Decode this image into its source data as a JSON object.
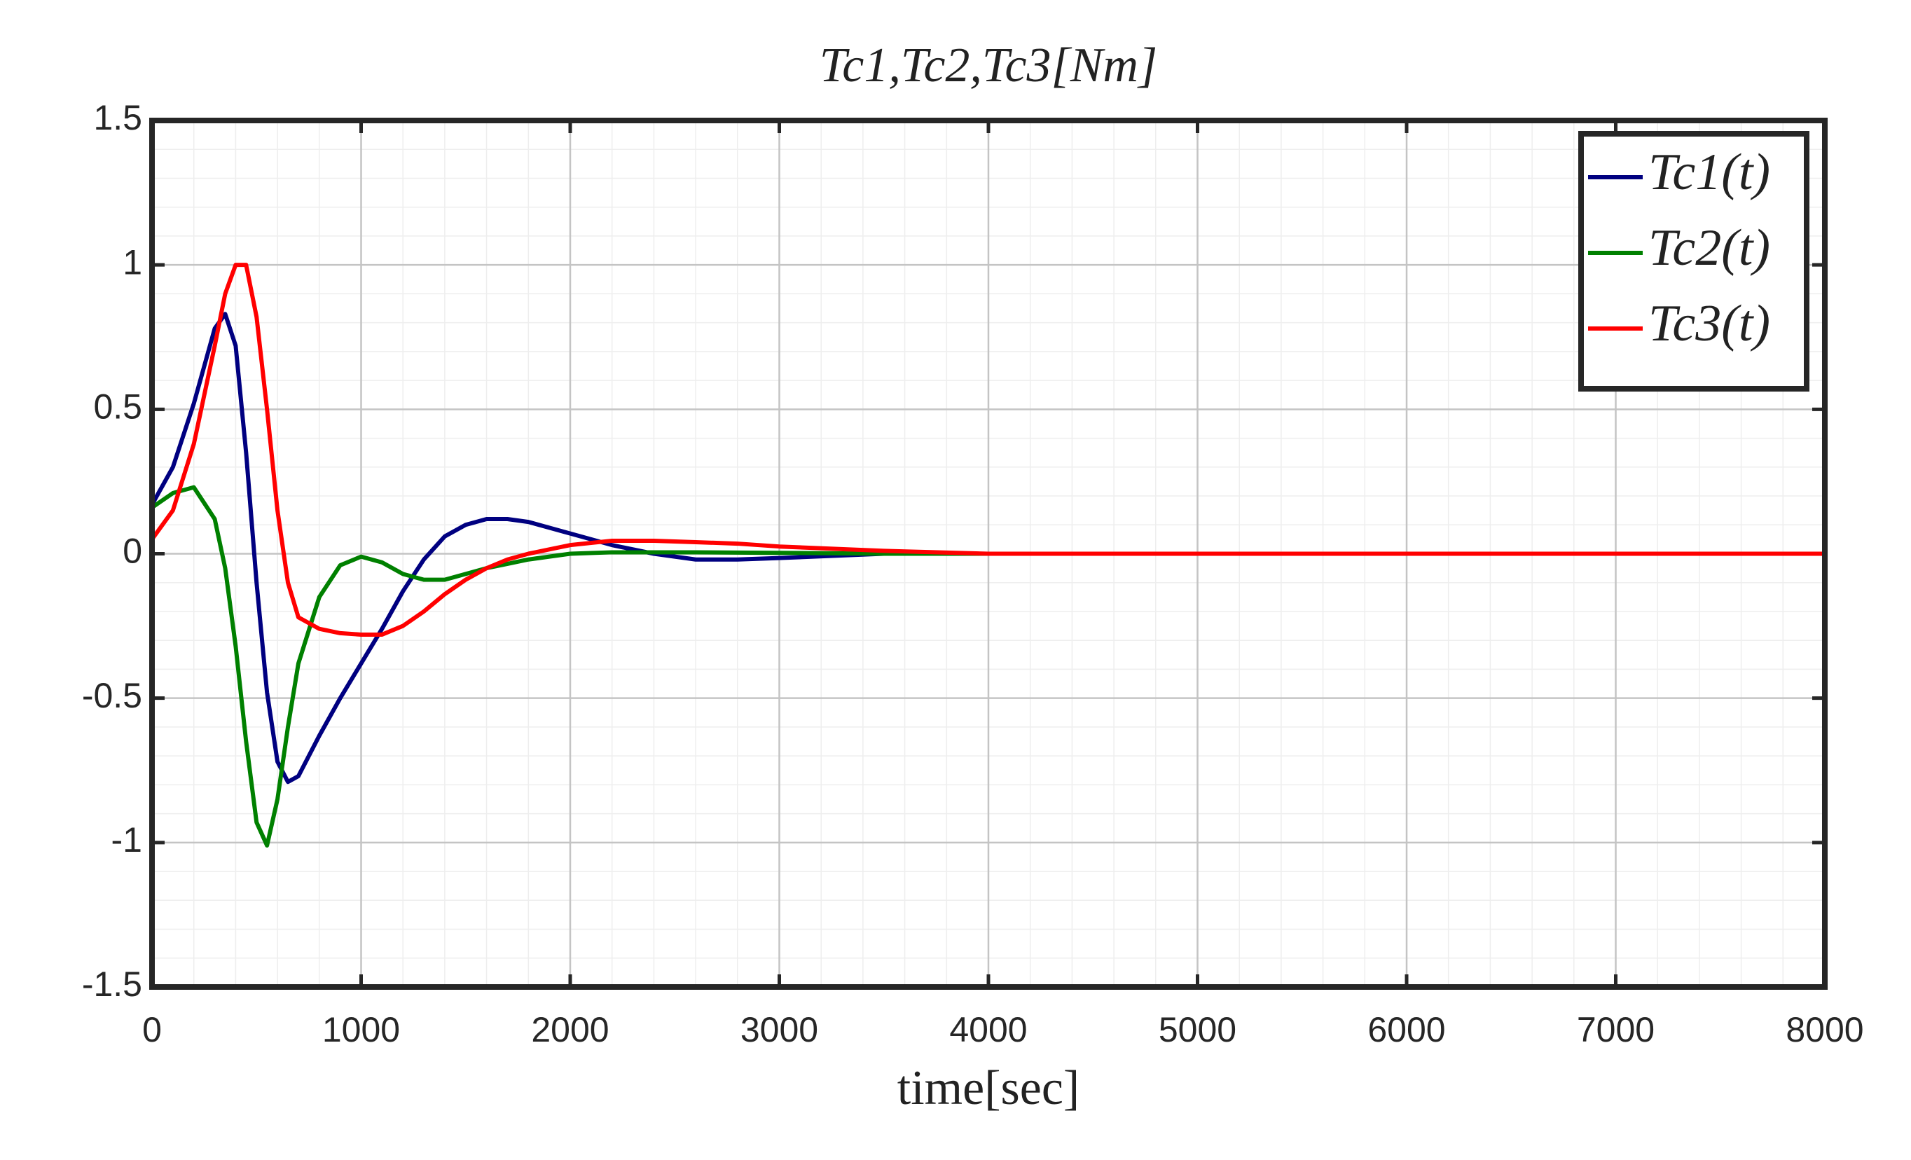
{
  "chart_data": {
    "type": "line",
    "title": "Tc1,Tc2,Tc3[Nm]",
    "x_label": "time[sec]",
    "x": [
      0,
      100,
      200,
      300,
      350,
      400,
      450,
      500,
      550,
      600,
      650,
      700,
      800,
      900,
      1000,
      1100,
      1200,
      1300,
      1400,
      1500,
      1600,
      1700,
      1800,
      1900,
      2000,
      2200,
      2400,
      2600,
      2800,
      3000,
      3500,
      4000,
      5000,
      6000,
      7000,
      8000
    ],
    "series": [
      {
        "name": "Tc1(t)",
        "color": "#000080",
        "values": [
          0.17,
          0.3,
          0.52,
          0.78,
          0.83,
          0.72,
          0.35,
          -0.1,
          -0.48,
          -0.72,
          -0.79,
          -0.77,
          -0.63,
          -0.5,
          -0.38,
          -0.26,
          -0.13,
          -0.02,
          0.06,
          0.1,
          0.12,
          0.12,
          0.11,
          0.09,
          0.07,
          0.03,
          0,
          -0.02,
          -0.02,
          -0.015,
          0,
          0,
          0,
          0,
          0,
          0
        ]
      },
      {
        "name": "Tc2(t)",
        "color": "#008000",
        "values": [
          0.16,
          0.21,
          0.23,
          0.12,
          -0.05,
          -0.32,
          -0.65,
          -0.93,
          -1.01,
          -0.85,
          -0.6,
          -0.38,
          -0.15,
          -0.04,
          -0.01,
          -0.03,
          -0.07,
          -0.09,
          -0.09,
          -0.07,
          -0.05,
          -0.035,
          -0.02,
          -0.01,
          0,
          0.005,
          0.005,
          0.005,
          0.004,
          0.003,
          0,
          0,
          0,
          0,
          0,
          0
        ]
      },
      {
        "name": "Tc3(t)",
        "color": "#ff0000",
        "values": [
          0.05,
          0.15,
          0.38,
          0.72,
          0.9,
          1.0,
          1.0,
          0.82,
          0.5,
          0.15,
          -0.1,
          -0.22,
          -0.26,
          -0.275,
          -0.28,
          -0.28,
          -0.25,
          -0.2,
          -0.14,
          -0.09,
          -0.05,
          -0.02,
          0,
          0.015,
          0.03,
          0.045,
          0.045,
          0.04,
          0.035,
          0.025,
          0.01,
          0,
          0,
          0,
          0,
          0
        ]
      }
    ],
    "xlim": [
      0,
      8000
    ],
    "ylim": [
      -1.5,
      1.5
    ],
    "xticks": [
      0,
      1000,
      2000,
      3000,
      4000,
      5000,
      6000,
      7000,
      8000
    ],
    "yticks": [
      -1.5,
      -1,
      -0.5,
      0,
      0.5,
      1,
      1.5
    ],
    "grid": true,
    "legend": "upper right"
  }
}
